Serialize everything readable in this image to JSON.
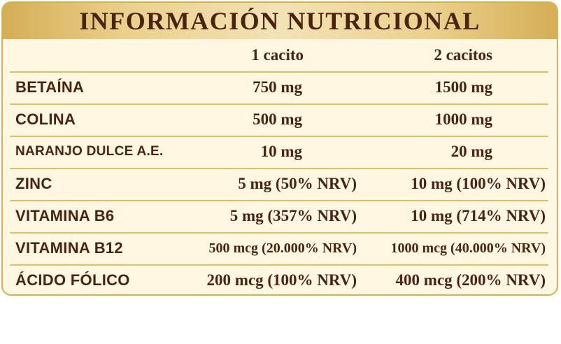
{
  "title": "INFORMACIÓN NUTRICIONAL",
  "columns": [
    "1 cacito",
    "2 cacitos"
  ],
  "rows": [
    {
      "name": "BETAÍNA",
      "c1": "750 mg",
      "c2": "1500 mg"
    },
    {
      "name": "COLINA",
      "c1": "500 mg",
      "c2": "1000 mg"
    },
    {
      "name": "NARANJO DULCE  A.E.",
      "c1": "10 mg",
      "c2": "20 mg"
    },
    {
      "name": "ZINC",
      "c1": "5 mg (50% NRV)",
      "c2": "10 mg (100% NRV)"
    },
    {
      "name": "VITAMINA B6",
      "c1": "5 mg (357% NRV)",
      "c2": "10 mg (714% NRV)"
    },
    {
      "name": "VITAMINA B12",
      "c1": "500 mcg (20.000% NRV)",
      "c2": "1000 mcg (40.000% NRV)"
    },
    {
      "name": "ÁCIDO FÓLICO",
      "c1": "200 mcg (100% NRV)",
      "c2": "400 mcg (200% NRV)"
    }
  ],
  "colors": {
    "border": "#d6b24a",
    "background": "#fff7e2",
    "text": "#4a2410",
    "divider": "#dcc06a"
  }
}
